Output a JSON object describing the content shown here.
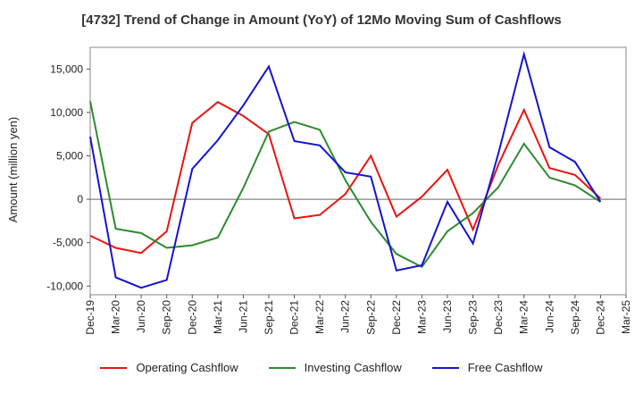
{
  "chart_data": {
    "type": "line",
    "title": "[4732]  Trend of Change in Amount (YoY) of 12Mo Moving Sum of Cashflows",
    "xlabel": "",
    "ylabel": "Amount (million yen)",
    "ylim": [
      -11000,
      17500
    ],
    "yticks": [
      -10000,
      -5000,
      0,
      5000,
      10000,
      15000
    ],
    "ytick_labels": [
      "-10,000",
      "-5,000",
      "0",
      "5,000",
      "10,000",
      "15,000"
    ],
    "categories": [
      "Dec-19",
      "Mar-20",
      "Jun-20",
      "Sep-20",
      "Dec-20",
      "Mar-21",
      "Jun-21",
      "Sep-21",
      "Dec-21",
      "Mar-22",
      "Jun-22",
      "Sep-22",
      "Dec-22",
      "Mar-23",
      "Jun-23",
      "Sep-23",
      "Dec-23",
      "Mar-24",
      "Jun-24",
      "Sep-24",
      "Dec-24",
      "Mar-25"
    ],
    "grid": true,
    "legend_position": "bottom",
    "series": [
      {
        "name": "Operating Cashflow",
        "color": "#e8150f",
        "values": [
          -4200,
          -5600,
          -6200,
          -3700,
          8800,
          11200,
          9600,
          7500,
          -2200,
          -1800,
          600,
          5000,
          -2000,
          300,
          3400,
          -3500,
          4000,
          10300,
          3600,
          2800,
          100,
          null
        ]
      },
      {
        "name": "Investing Cashflow",
        "color": "#2e8b2e",
        "values": [
          11300,
          -3400,
          -3900,
          -5600,
          -5300,
          -4400,
          1300,
          7800,
          8900,
          8000,
          2200,
          -2600,
          -6300,
          -7800,
          -3700,
          -1600,
          1400,
          6400,
          2500,
          1600,
          -300,
          null
        ]
      },
      {
        "name": "Free Cashflow",
        "color": "#1414d2",
        "values": [
          7200,
          -9000,
          -10200,
          -9300,
          3500,
          6800,
          10800,
          15300,
          6700,
          6200,
          3100,
          2600,
          -8200,
          -7600,
          -300,
          -5100,
          5300,
          16700,
          6000,
          4300,
          -300,
          null
        ]
      }
    ]
  }
}
